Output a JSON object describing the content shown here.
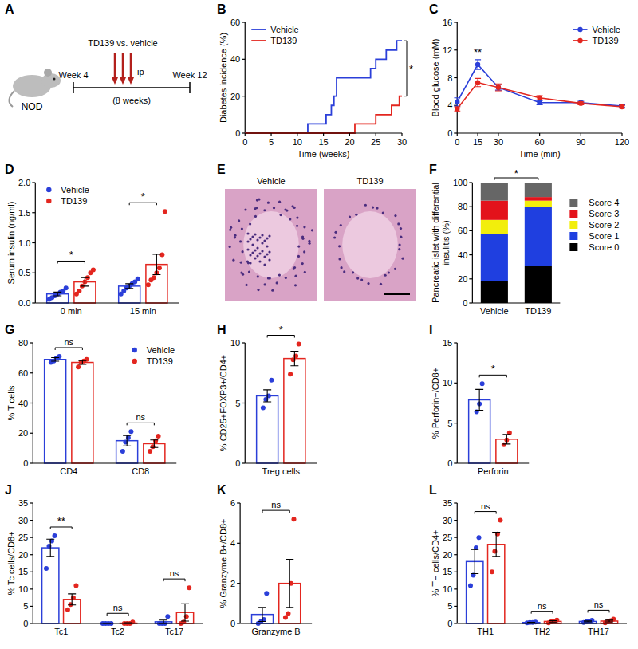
{
  "chart_data": [
    {
      "panel": "A",
      "type": "schematic",
      "strain": "NOD",
      "start": "Week 4",
      "end": "Week 12",
      "treatment": "TD139 vs. vehicle",
      "route": "ip",
      "duration": "(8 weeks)"
    },
    {
      "panel": "B",
      "type": "line",
      "line_style": "step",
      "x_label": "Time (weeks)",
      "y_label": "Diabetes incidence (%)",
      "xlim": [
        0,
        30
      ],
      "xticks": [
        0,
        5,
        10,
        15,
        20,
        25,
        30
      ],
      "ylim": [
        0,
        60
      ],
      "yticks": [
        0,
        20,
        40,
        60
      ],
      "legend": "upper left",
      "significance": "*",
      "series": [
        {
          "name": "Vehicle",
          "color": "#2b3fd9",
          "x": [
            0,
            12,
            15.5,
            16.5,
            17,
            17.5,
            24,
            25,
            27,
            29,
            30
          ],
          "values": [
            0,
            5,
            10,
            15,
            20,
            30,
            35,
            40,
            45,
            50,
            50
          ]
        },
        {
          "name": "TD139",
          "color": "#e3261f",
          "x": [
            0,
            21,
            25,
            28,
            29.5,
            30
          ],
          "values": [
            0,
            5,
            10,
            15,
            20,
            20
          ]
        }
      ]
    },
    {
      "panel": "C",
      "type": "line",
      "marker": "circle",
      "x_label": "Time (min)",
      "y_label": "Blood glucose (mM)",
      "x": [
        0,
        15,
        30,
        60,
        90,
        120
      ],
      "xlim": [
        0,
        120
      ],
      "xticks": [
        0,
        15,
        30,
        60,
        90,
        120
      ],
      "ylim": [
        0,
        16
      ],
      "yticks": [
        0,
        4,
        8,
        12,
        16
      ],
      "legend": "upper right",
      "significance": [
        null,
        "**",
        null,
        null,
        null,
        null
      ],
      "series": [
        {
          "name": "Vehicle",
          "color": "#2b3fd9",
          "values": [
            4.5,
            9.9,
            6.6,
            4.4,
            4.4,
            3.9
          ],
          "errors": [
            0.6,
            0.7,
            0.4,
            0.3,
            0.2,
            0.2
          ]
        },
        {
          "name": "TD139",
          "color": "#e3261f",
          "values": [
            3.5,
            7.3,
            6.6,
            5.1,
            4.3,
            3.8
          ],
          "errors": [
            0.3,
            0.6,
            0.5,
            0.3,
            0.2,
            0.2
          ]
        }
      ]
    },
    {
      "panel": "D",
      "type": "bar",
      "y_label": "Serum insulin (ng/ml)",
      "categories": [
        "0 min",
        "15 min"
      ],
      "ylim": [
        0,
        2
      ],
      "yticks": [
        {
          "value": 0,
          "label": "0.0"
        },
        0.5,
        {
          "value": 1,
          "label": "1.0"
        },
        1.5,
        {
          "value": 2,
          "label": "2.0"
        }
      ],
      "legend": "upper left",
      "significance": [
        "*",
        "*"
      ],
      "series": [
        {
          "name": "Vehicle",
          "color": "#2b3fd9",
          "values": [
            0.15,
            0.28
          ],
          "errors": [
            0.03,
            0.04
          ],
          "points": [
            [
              0.06,
              0.09,
              0.12,
              0.15,
              0.18,
              0.2,
              0.25
            ],
            [
              0.15,
              0.2,
              0.25,
              0.28,
              0.32,
              0.35,
              0.4
            ]
          ]
        },
        {
          "name": "TD139",
          "color": "#e3261f",
          "values": [
            0.35,
            0.64
          ],
          "errors": [
            0.07,
            0.17
          ],
          "points": [
            [
              0.15,
              0.2,
              0.28,
              0.35,
              0.42,
              0.5,
              0.55
            ],
            [
              0.3,
              0.38,
              0.42,
              0.5,
              0.58,
              0.8,
              1.52
            ]
          ]
        }
      ]
    },
    {
      "panel": "E",
      "type": "image",
      "labels": [
        "Vehicle",
        "TD139"
      ]
    },
    {
      "panel": "F",
      "type": "bar",
      "stacked": true,
      "y_label": "Pancreatic islet with differential insulitis (%)",
      "categories": [
        "Vehicle",
        "TD139"
      ],
      "ylim": [
        0,
        100
      ],
      "yticks": [
        0,
        20,
        40,
        60,
        80,
        100
      ],
      "legend": "right",
      "significance": "*",
      "series": [
        {
          "name": "Score 0",
          "color": "#000000",
          "values": [
            18,
            31
          ]
        },
        {
          "name": "Score 1",
          "color": "#1f3fe0",
          "values": [
            39,
            49
          ]
        },
        {
          "name": "Score 2",
          "color": "#f2ee0c",
          "values": [
            12,
            5
          ]
        },
        {
          "name": "Score 3",
          "color": "#e3121b",
          "values": [
            16,
            3
          ]
        },
        {
          "name": "Score 4",
          "color": "#666666",
          "values": [
            15,
            12
          ]
        }
      ]
    },
    {
      "panel": "G",
      "type": "bar",
      "y_label": "% T cells",
      "categories": [
        "CD4",
        "CD8"
      ],
      "ylim": [
        0,
        80
      ],
      "yticks": [
        0,
        20,
        40,
        60,
        80
      ],
      "legend": "upper right",
      "significance": [
        "ns",
        "ns"
      ],
      "series": [
        {
          "name": "Vehicle",
          "color": "#2b3fd9",
          "values": [
            69,
            15
          ],
          "errors": [
            1.2,
            3.5
          ],
          "points": [
            [
              67,
              68,
              70,
              71
            ],
            [
              8,
              14,
              17,
              21
            ]
          ]
        },
        {
          "name": "TD139",
          "color": "#e3261f",
          "values": [
            67,
            13
          ],
          "errors": [
            1.3,
            2.5
          ],
          "points": [
            [
              64,
              67,
              68,
              69
            ],
            [
              8,
              11,
              15,
              18
            ]
          ]
        }
      ]
    },
    {
      "panel": "H",
      "type": "bar",
      "y_label": "% CD25+FOXP3+/CD4+",
      "categories": [
        "Treg cells"
      ],
      "ylim": [
        0,
        10
      ],
      "yticks": [
        0,
        5,
        10
      ],
      "significance": [
        "*"
      ],
      "series": [
        {
          "color": "#2b3fd9",
          "values": [
            5.6
          ],
          "errors": [
            0.5
          ],
          "points": [
            [
              4.6,
              5.3,
              5.6,
              6.9
            ]
          ]
        },
        {
          "color": "#e3261f",
          "values": [
            8.7
          ],
          "errors": [
            0.6
          ],
          "points": [
            [
              7.4,
              8.6,
              8.9,
              9.9
            ]
          ]
        }
      ]
    },
    {
      "panel": "I",
      "type": "bar",
      "y_label": "% Perforin+/CD8+",
      "categories": [
        "Perforin"
      ],
      "ylim": [
        0,
        15
      ],
      "yticks": [
        0,
        5,
        10,
        15
      ],
      "significance": [
        "*"
      ],
      "series": [
        {
          "color": "#2b3fd9",
          "values": [
            7.9
          ],
          "errors": [
            1.3
          ],
          "points": [
            [
              6.4,
              7.4,
              9.9
            ]
          ]
        },
        {
          "color": "#e3261f",
          "values": [
            3.0
          ],
          "errors": [
            0.6
          ],
          "points": [
            [
              2.3,
              2.9,
              3.8
            ]
          ]
        }
      ]
    },
    {
      "panel": "J",
      "type": "bar",
      "y_label": "% Tc cells/CD8+",
      "categories": [
        "Tc1",
        "Tc2",
        "Tc17"
      ],
      "ylim": [
        0,
        35
      ],
      "yticks": [
        0,
        5,
        10,
        15,
        20,
        25,
        30,
        35
      ],
      "significance": [
        "**",
        "ns",
        "ns"
      ],
      "series": [
        {
          "color": "#2b3fd9",
          "values": [
            22,
            0,
            0.5
          ],
          "errors": [
            2.5,
            0,
            0.5
          ],
          "points": [
            [
              16,
              22.5,
              24,
              25.5
            ],
            [
              0,
              0,
              0,
              0
            ],
            [
              0,
              0,
              0,
              2
            ]
          ]
        },
        {
          "color": "#e3261f",
          "values": [
            7,
            0.1,
            3.2
          ],
          "errors": [
            1.6,
            0.1,
            2.5
          ],
          "points": [
            [
              4,
              5.5,
              7.5,
              11
            ],
            [
              0,
              0,
              0,
              0.4
            ],
            [
              0,
              0.4,
              2,
              10.4
            ]
          ]
        }
      ]
    },
    {
      "panel": "K",
      "type": "bar",
      "y_label": "% Granzyme B+/CD8+",
      "categories": [
        "Granzyme B"
      ],
      "ylim": [
        0,
        6
      ],
      "yticks": [
        0,
        2,
        4,
        6
      ],
      "significance": [
        "ns"
      ],
      "series": [
        {
          "color": "#2b3fd9",
          "values": [
            0.45
          ],
          "errors": [
            0.35
          ],
          "points": [
            [
              0,
              0.1,
              0.2,
              1.5
            ]
          ]
        },
        {
          "color": "#e3261f",
          "values": [
            2.0
          ],
          "errors": [
            1.2
          ],
          "points": [
            [
              0.3,
              0.5,
              2.0,
              5.2
            ]
          ]
        }
      ]
    },
    {
      "panel": "L",
      "type": "bar",
      "y_label": "% TH cells/CD4+",
      "categories": [
        "TH1",
        "TH2",
        "TH17"
      ],
      "ylim": [
        0,
        35
      ],
      "yticks": [
        0,
        5,
        10,
        15,
        20,
        25,
        30,
        35
      ],
      "significance": [
        "ns",
        "ns",
        "ns"
      ],
      "series": [
        {
          "color": "#2b3fd9",
          "values": [
            18,
            0.3,
            0.6
          ],
          "errors": [
            3.5,
            0.05,
            0.15
          ],
          "points": [
            [
              11,
              14,
              22,
              25
            ],
            [
              0.2,
              0.3,
              0.3,
              0.4
            ],
            [
              0.3,
              0.5,
              0.7,
              0.9
            ]
          ]
        },
        {
          "color": "#e3261f",
          "values": [
            23,
            0.6,
            0.7
          ],
          "errors": [
            3.5,
            0.2,
            0.25
          ],
          "points": [
            [
              15,
              21,
              26,
              30
            ],
            [
              0.2,
              0.5,
              0.7,
              1.0
            ],
            [
              0.2,
              0.5,
              0.8,
              1.3
            ]
          ]
        }
      ]
    }
  ]
}
